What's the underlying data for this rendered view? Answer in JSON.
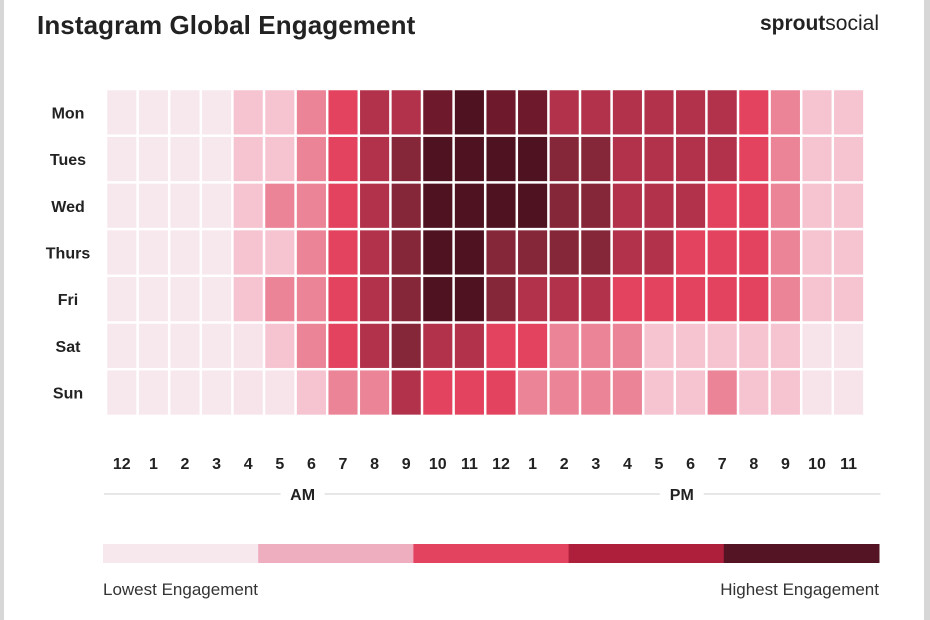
{
  "title": "Instagram Global Engagement",
  "brand": {
    "bold": "sprout",
    "regular": "social"
  },
  "chart_data": {
    "type": "heatmap",
    "rows": [
      "Mon",
      "Tues",
      "Wed",
      "Thurs",
      "Fri",
      "Sat",
      "Sun"
    ],
    "columns": [
      "12",
      "1",
      "2",
      "3",
      "4",
      "5",
      "6",
      "7",
      "8",
      "9",
      "10",
      "11",
      "12",
      "1",
      "2",
      "3",
      "4",
      "5",
      "6",
      "7",
      "8",
      "9",
      "10",
      "11"
    ],
    "column_groups": [
      {
        "label": "AM",
        "from": 0,
        "to": 11
      },
      {
        "label": "PM",
        "from": 12,
        "to": 23
      }
    ],
    "scale_levels": 5,
    "values": [
      [
        1,
        1,
        1,
        1,
        2,
        2,
        2.5,
        3,
        3.5,
        3.5,
        4.5,
        5,
        4.5,
        4.5,
        3.5,
        3.5,
        3.5,
        3.5,
        3.5,
        3.5,
        3,
        2.5,
        2,
        2
      ],
      [
        1,
        1,
        1,
        1,
        2,
        2,
        2.5,
        3,
        3.5,
        4,
        5,
        5,
        5,
        5,
        4,
        4,
        3.5,
        3.5,
        3.5,
        3.5,
        3,
        2.5,
        2,
        2
      ],
      [
        1,
        1,
        1,
        1,
        2,
        2.5,
        2.5,
        3,
        3.5,
        4,
        5,
        5,
        5,
        5,
        4,
        4,
        3.5,
        3.5,
        3.5,
        3,
        3,
        2.5,
        2,
        2
      ],
      [
        1,
        1,
        1,
        1,
        2,
        2,
        2.5,
        3,
        3.5,
        4,
        5,
        5,
        4,
        4,
        4,
        4,
        3.5,
        3.5,
        3,
        3,
        3,
        2.5,
        2,
        2
      ],
      [
        1,
        1,
        1,
        1,
        2,
        2.5,
        2.5,
        3,
        3.5,
        4,
        5,
        5,
        4,
        3.5,
        3.5,
        3.5,
        3,
        3,
        3,
        3,
        3,
        2.5,
        2,
        2
      ],
      [
        1,
        1,
        1,
        1,
        1.2,
        2,
        2.5,
        3,
        3.5,
        4,
        3.5,
        3.5,
        3,
        3,
        2.5,
        2.5,
        2.5,
        2,
        2,
        2,
        2,
        2,
        1.2,
        1.2
      ],
      [
        1,
        1,
        1,
        1,
        1.2,
        1.2,
        2,
        2.5,
        2.5,
        3.5,
        3,
        3,
        3,
        2.5,
        2.5,
        2.5,
        2.5,
        2,
        2,
        2.5,
        2,
        2,
        1.2,
        1.2
      ]
    ],
    "legend": {
      "low_label": "Lowest Engagement",
      "high_label": "Highest Engagement",
      "colors": [
        "#f7e8ed",
        "#efadc0",
        "#e3435f",
        "#ad1f3b",
        "#541423"
      ]
    },
    "cell_colors": {
      "1": "#f7e8ed",
      "1.2": "#f7e4ea",
      "2": "#f5c4d0",
      "2.5": "#ec8498",
      "3": "#e3435f",
      "3.5": "#b2324c",
      "4": "#862639",
      "4.5": "#6e1a2c",
      "5": "#4f1221"
    }
  }
}
